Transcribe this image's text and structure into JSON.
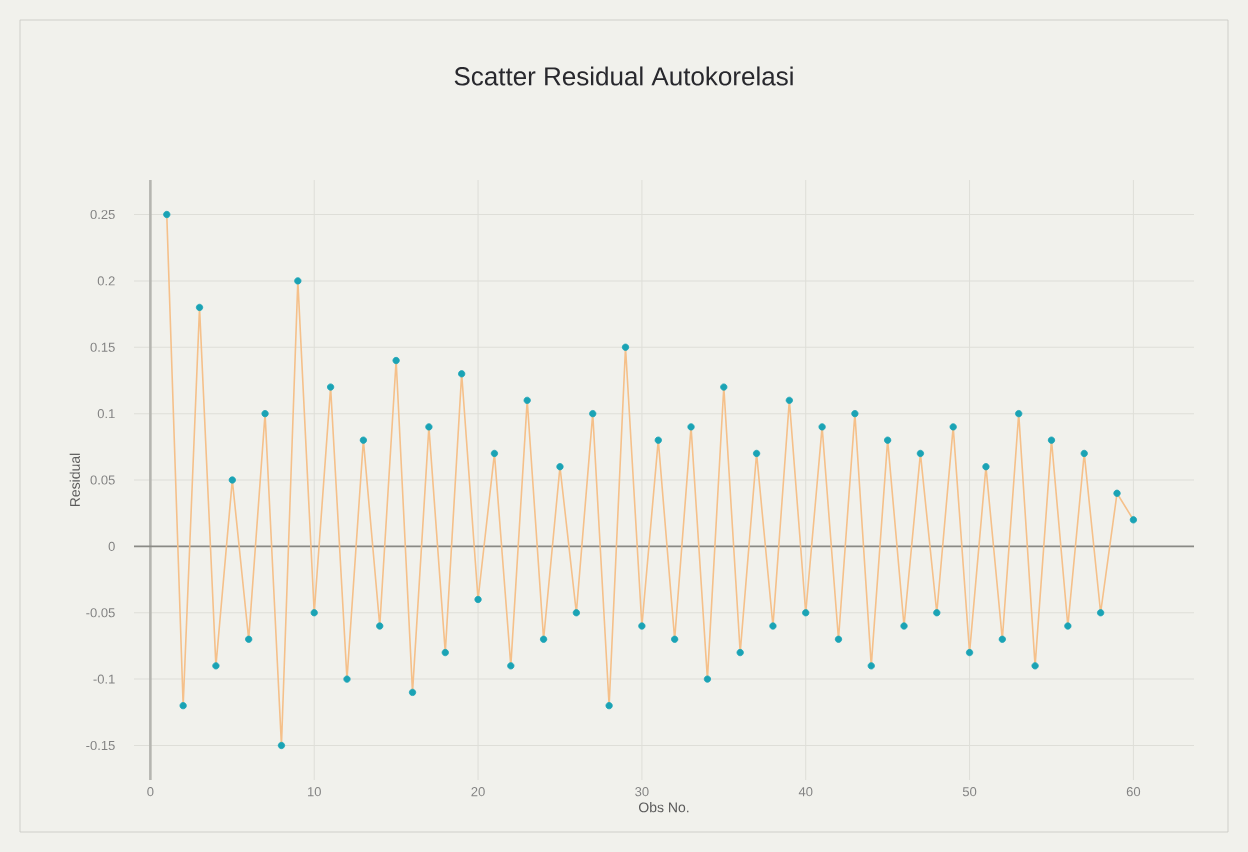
{
  "chart_data": {
    "type": "line",
    "title": "Scatter Residual Autokorelasi",
    "xlabel": "Obs No.",
    "ylabel": "Residual",
    "x": [
      1,
      2,
      3,
      4,
      5,
      6,
      7,
      8,
      9,
      10,
      11,
      12,
      13,
      14,
      15,
      16,
      17,
      18,
      19,
      20,
      21,
      22,
      23,
      24,
      25,
      26,
      27,
      28,
      29,
      30,
      31,
      32,
      33,
      34,
      35,
      36,
      37,
      38,
      39,
      40,
      41,
      42,
      43,
      44,
      45,
      46,
      47,
      48,
      49,
      50,
      51,
      52,
      53,
      54,
      55,
      56,
      57,
      58,
      59,
      60
    ],
    "series": [
      {
        "color": "#f5c08a",
        "values": [
          0.25,
          -0.12,
          0.18,
          -0.09,
          0.05,
          -0.07,
          0.1,
          -0.15,
          0.2,
          -0.05,
          0.12,
          -0.1,
          0.08,
          -0.06,
          0.14,
          -0.11,
          0.09,
          -0.08,
          0.13,
          -0.04,
          0.07,
          -0.09,
          0.11,
          -0.07,
          0.06,
          -0.05,
          0.1,
          -0.12,
          0.15,
          -0.06,
          0.08,
          -0.07,
          0.09,
          -0.1,
          0.12,
          -0.08,
          0.07,
          -0.06,
          0.11,
          -0.05,
          0.09,
          -0.07,
          0.1,
          -0.09,
          0.08,
          -0.06,
          0.07,
          -0.05,
          0.09,
          -0.08,
          0.06,
          -0.07,
          0.1,
          -0.09,
          0.08,
          -0.06,
          0.07,
          -0.05,
          0.04,
          0.02
        ]
      },
      {
        "type": "scatter",
        "color": "#1aa3b5",
        "marker": "circle",
        "values": [
          0.25,
          -0.12,
          0.18,
          -0.09,
          0.05,
          -0.07,
          0.1,
          -0.15,
          0.2,
          -0.05,
          0.12,
          -0.1,
          0.08,
          -0.06,
          0.14,
          -0.11,
          0.09,
          -0.08,
          0.13,
          -0.04,
          0.07,
          -0.09,
          0.11,
          -0.07,
          0.06,
          -0.05,
          0.1,
          -0.12,
          0.15,
          -0.06,
          0.08,
          -0.07,
          0.09,
          -0.1,
          0.12,
          -0.08,
          0.07,
          -0.06,
          0.11,
          -0.05,
          0.09,
          -0.07,
          0.1,
          -0.09,
          0.08,
          -0.06,
          0.07,
          -0.05,
          0.09,
          -0.08,
          0.06,
          -0.07,
          0.1,
          -0.09,
          0.08,
          -0.06,
          0.07,
          -0.05,
          0.04,
          0.02
        ]
      }
    ],
    "xlim": [
      -1,
      63.7
    ],
    "ylim": [
      -0.176,
      0.276
    ],
    "xticks": [
      0,
      10,
      20,
      30,
      40,
      50,
      60
    ],
    "yticks": [
      0.25,
      0.2,
      0.15,
      0.1,
      0.05,
      0,
      -0.05,
      -0.1,
      -0.15
    ],
    "grid": true,
    "ref_lines": [
      {
        "axis": "y",
        "value": 0,
        "color": "#8a8a85"
      }
    ]
  }
}
